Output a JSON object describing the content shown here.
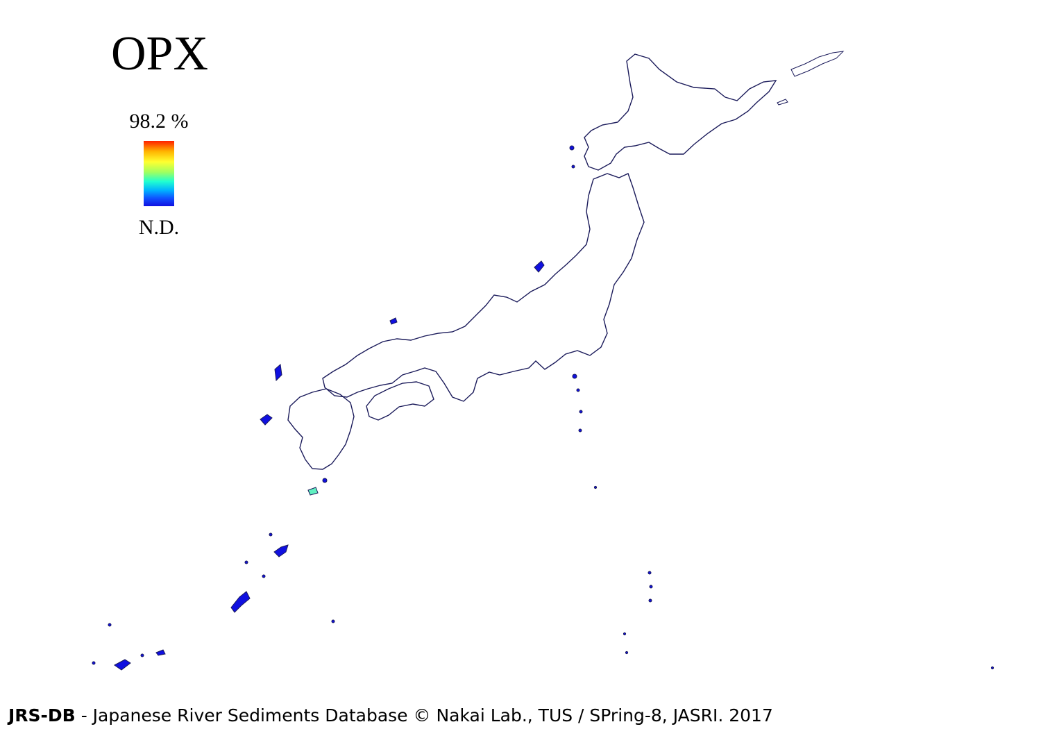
{
  "map": {
    "title": "OPX",
    "legend": {
      "max_label": "98.2 %",
      "min_label": "N.D.",
      "colors": [
        "#ff2000",
        "#ffb400",
        "#ffff30",
        "#a0ff60",
        "#20ffd0",
        "#00b0ff",
        "#1050ff",
        "#1010e0"
      ]
    },
    "outline_color": "#1a1a5a"
  },
  "footer": {
    "brand": "JRS-DB",
    "text": " - Japanese River Sediments Database © Nakai Lab., TUS / SPring-8, JASRI. 2017"
  }
}
